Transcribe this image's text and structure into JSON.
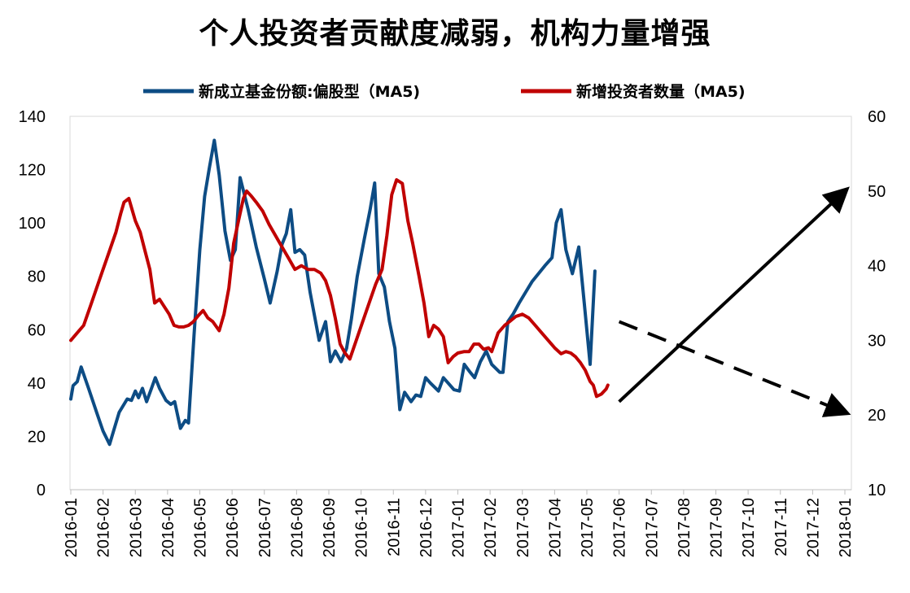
{
  "chart_data": {
    "type": "line",
    "title": "个人投资者贡献度减弱，机构力量增强",
    "x_tick_labels": [
      "2016-01",
      "2016-02",
      "2016-03",
      "2016-04",
      "2016-05",
      "2016-06",
      "2016-07",
      "2016-08",
      "2016-09",
      "2016-10",
      "2016-11",
      "2016-12",
      "2017-01",
      "2017-02",
      "2017-03",
      "2017-04",
      "2017-05",
      "2017-06",
      "2017-07",
      "2017-08",
      "2017-09",
      "2017-10",
      "2017-11",
      "2017-12",
      "2018-01"
    ],
    "y_left": {
      "min": 0,
      "max": 140,
      "ticks": [
        "0",
        "20",
        "40",
        "60",
        "80",
        "100",
        "120",
        "140"
      ]
    },
    "y_right": {
      "min": 10,
      "max": 60,
      "ticks": [
        "10",
        "20",
        "30",
        "40",
        "50",
        "60"
      ]
    },
    "legend_position": "top-center",
    "grid": false,
    "series": [
      {
        "name": "新成立基金份额:偏股型（MA5)",
        "axis": "left",
        "color": "#0d4c84",
        "points": [
          [
            0.0,
            34
          ],
          [
            0.07,
            39
          ],
          [
            0.2,
            40.5
          ],
          [
            0.32,
            46
          ],
          [
            0.55,
            38
          ],
          [
            0.8,
            29
          ],
          [
            1.0,
            22
          ],
          [
            1.2,
            17
          ],
          [
            1.35,
            23
          ],
          [
            1.5,
            29
          ],
          [
            1.75,
            34
          ],
          [
            1.88,
            33.5
          ],
          [
            2.0,
            37
          ],
          [
            2.1,
            34.5
          ],
          [
            2.22,
            38
          ],
          [
            2.35,
            33
          ],
          [
            2.5,
            38
          ],
          [
            2.62,
            42
          ],
          [
            2.75,
            38
          ],
          [
            2.95,
            33.5
          ],
          [
            3.1,
            32
          ],
          [
            3.22,
            33
          ],
          [
            3.4,
            23
          ],
          [
            3.55,
            26
          ],
          [
            3.65,
            25
          ],
          [
            3.82,
            58
          ],
          [
            4.0,
            90
          ],
          [
            4.15,
            110
          ],
          [
            4.3,
            121
          ],
          [
            4.45,
            131
          ],
          [
            4.6,
            118
          ],
          [
            4.78,
            97
          ],
          [
            4.95,
            86
          ],
          [
            5.1,
            90
          ],
          [
            5.25,
            117
          ],
          [
            5.5,
            105
          ],
          [
            5.75,
            91
          ],
          [
            6.0,
            79
          ],
          [
            6.18,
            70
          ],
          [
            6.4,
            82
          ],
          [
            6.55,
            92
          ],
          [
            6.68,
            96
          ],
          [
            6.82,
            105
          ],
          [
            6.95,
            89
          ],
          [
            7.1,
            90
          ],
          [
            7.25,
            88
          ],
          [
            7.42,
            74
          ],
          [
            7.7,
            56
          ],
          [
            7.9,
            63
          ],
          [
            8.05,
            48
          ],
          [
            8.2,
            52
          ],
          [
            8.38,
            48
          ],
          [
            8.55,
            53
          ],
          [
            8.7,
            64
          ],
          [
            8.88,
            80
          ],
          [
            9.1,
            94
          ],
          [
            9.28,
            105
          ],
          [
            9.42,
            115
          ],
          [
            9.55,
            81
          ],
          [
            9.72,
            76
          ],
          [
            9.88,
            63
          ],
          [
            10.05,
            53
          ],
          [
            10.2,
            30
          ],
          [
            10.35,
            36.5
          ],
          [
            10.55,
            33
          ],
          [
            10.7,
            35.5
          ],
          [
            10.85,
            35
          ],
          [
            11.0,
            42
          ],
          [
            11.15,
            40
          ],
          [
            11.4,
            37
          ],
          [
            11.55,
            42
          ],
          [
            11.7,
            40
          ],
          [
            11.88,
            37.5
          ],
          [
            12.05,
            37
          ],
          [
            12.2,
            47
          ],
          [
            12.35,
            44.5
          ],
          [
            12.52,
            42
          ],
          [
            12.7,
            48
          ],
          [
            12.88,
            52
          ],
          [
            13.05,
            47
          ],
          [
            13.3,
            44
          ],
          [
            13.4,
            44
          ],
          [
            13.55,
            63
          ],
          [
            13.72,
            66
          ],
          [
            13.9,
            70
          ],
          [
            14.1,
            74
          ],
          [
            14.3,
            78
          ],
          [
            14.5,
            81
          ],
          [
            14.7,
            84
          ],
          [
            14.92,
            87
          ],
          [
            15.05,
            100
          ],
          [
            15.2,
            105
          ],
          [
            15.35,
            90
          ],
          [
            15.55,
            81
          ],
          [
            15.75,
            91
          ],
          [
            15.92,
            70
          ],
          [
            16.1,
            47
          ],
          [
            16.25,
            82
          ]
        ]
      },
      {
        "name": "新增投资者数量（MA5)",
        "axis": "right",
        "color": "#c00000",
        "points": [
          [
            0.0,
            30
          ],
          [
            0.2,
            31
          ],
          [
            0.4,
            32
          ],
          [
            0.6,
            34.5
          ],
          [
            0.8,
            37
          ],
          [
            1.0,
            39.5
          ],
          [
            1.2,
            42
          ],
          [
            1.4,
            44.5
          ],
          [
            1.55,
            47
          ],
          [
            1.65,
            48.5
          ],
          [
            1.8,
            49
          ],
          [
            1.9,
            47.5
          ],
          [
            2.0,
            46
          ],
          [
            2.15,
            44.5
          ],
          [
            2.3,
            42
          ],
          [
            2.45,
            39.5
          ],
          [
            2.6,
            35
          ],
          [
            2.75,
            35.5
          ],
          [
            2.9,
            34.5
          ],
          [
            3.05,
            33.5
          ],
          [
            3.2,
            32
          ],
          [
            3.35,
            31.8
          ],
          [
            3.5,
            31.8
          ],
          [
            3.65,
            32
          ],
          [
            3.8,
            32.5
          ],
          [
            3.95,
            33.3
          ],
          [
            4.1,
            34
          ],
          [
            4.25,
            33
          ],
          [
            4.4,
            32.5
          ],
          [
            4.6,
            31.3
          ],
          [
            4.75,
            33.5
          ],
          [
            4.9,
            37
          ],
          [
            5.05,
            43
          ],
          [
            5.2,
            46
          ],
          [
            5.35,
            49
          ],
          [
            5.45,
            50
          ],
          [
            5.6,
            49.3
          ],
          [
            5.75,
            48.5
          ],
          [
            5.95,
            47.3
          ],
          [
            6.15,
            45.5
          ],
          [
            6.35,
            44
          ],
          [
            6.55,
            42.5
          ],
          [
            6.75,
            41
          ],
          [
            6.95,
            39.5
          ],
          [
            7.15,
            40
          ],
          [
            7.35,
            39.5
          ],
          [
            7.55,
            39.5
          ],
          [
            7.75,
            39
          ],
          [
            7.9,
            38
          ],
          [
            8.05,
            36
          ],
          [
            8.2,
            33
          ],
          [
            8.35,
            29.5
          ],
          [
            8.5,
            28.3
          ],
          [
            8.65,
            27.5
          ],
          [
            8.85,
            30
          ],
          [
            9.05,
            32.5
          ],
          [
            9.25,
            35
          ],
          [
            9.45,
            37.5
          ],
          [
            9.65,
            39.5
          ],
          [
            9.8,
            44
          ],
          [
            9.95,
            49.5
          ],
          [
            10.1,
            51.5
          ],
          [
            10.28,
            51
          ],
          [
            10.45,
            46
          ],
          [
            10.6,
            43
          ],
          [
            10.8,
            38.5
          ],
          [
            10.95,
            35
          ],
          [
            11.1,
            30.5
          ],
          [
            11.25,
            32
          ],
          [
            11.4,
            31.5
          ],
          [
            11.55,
            30.5
          ],
          [
            11.7,
            27
          ],
          [
            11.85,
            27.8
          ],
          [
            12.0,
            28.3
          ],
          [
            12.2,
            28.5
          ],
          [
            12.35,
            28.5
          ],
          [
            12.5,
            29.5
          ],
          [
            12.65,
            29.5
          ],
          [
            12.8,
            28.8
          ],
          [
            12.95,
            29
          ],
          [
            13.05,
            28.5
          ],
          [
            13.25,
            31
          ],
          [
            13.45,
            32
          ],
          [
            13.6,
            32.5
          ],
          [
            13.8,
            33.2
          ],
          [
            14.0,
            33.5
          ],
          [
            14.2,
            33
          ],
          [
            14.4,
            32
          ],
          [
            14.6,
            31
          ],
          [
            14.8,
            30
          ],
          [
            15.0,
            29
          ],
          [
            15.2,
            28.2
          ],
          [
            15.35,
            28.5
          ],
          [
            15.5,
            28.3
          ],
          [
            15.65,
            27.8
          ],
          [
            15.8,
            27
          ],
          [
            15.95,
            26
          ],
          [
            16.1,
            24.5
          ],
          [
            16.2,
            24
          ],
          [
            16.3,
            22.5
          ],
          [
            16.45,
            22.8
          ],
          [
            16.6,
            23.5
          ],
          [
            16.65,
            24
          ]
        ]
      }
    ],
    "annotations": [
      {
        "type": "solid-arrow",
        "color": "#000000",
        "from": [
          17.0,
          33
        ],
        "to": [
          24.0,
          112
        ]
      },
      {
        "type": "dashed-arrow",
        "color": "#000000",
        "from": [
          17.0,
          63
        ],
        "to": [
          24.0,
          29
        ]
      }
    ]
  }
}
